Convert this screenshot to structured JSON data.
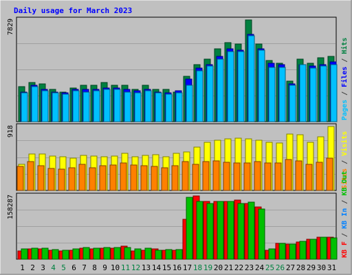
{
  "chart_data": {
    "type": "bar",
    "title": "Daily usage for March 2023",
    "categories": [
      "1",
      "2",
      "3",
      "4",
      "5",
      "6",
      "7",
      "8",
      "9",
      "10",
      "11",
      "12",
      "13",
      "14",
      "15",
      "16",
      "17",
      "18",
      "19",
      "20",
      "21",
      "22",
      "23",
      "24",
      "25",
      "26",
      "27",
      "28",
      "29",
      "30",
      "31"
    ],
    "weekend_days": [
      "4",
      "5",
      "11",
      "12",
      "18",
      "19",
      "25",
      "26"
    ],
    "panels": [
      {
        "name": "hits-files-pages",
        "max_label": "7829",
        "ylim": [
          0,
          7829
        ],
        "right_labels": [
          {
            "text": "Pages",
            "color": "#00C0FF"
          },
          {
            "text": " / ",
            "color": "#404040"
          },
          {
            "text": "Files",
            "color": "#0000FF"
          },
          {
            "text": " / ",
            "color": "#404040"
          },
          {
            "text": "Hits",
            "color": "#008040"
          }
        ],
        "series": [
          {
            "name": "Hits",
            "color": "#008040",
            "values": [
              2700,
              3000,
              2900,
              2500,
              2300,
              2600,
              2800,
              2800,
              3000,
              2800,
              2800,
              2500,
              2800,
              2500,
              2500,
              2300,
              3500,
              4400,
              4800,
              5600,
              6100,
              6000,
              7829,
              6000,
              4700,
              4500,
              3100,
              4800,
              4500,
              4900,
              5000
            ]
          },
          {
            "name": "Files",
            "color": "#0000FF",
            "values": [
              2300,
              2800,
              2500,
              2300,
              2200,
              2500,
              2500,
              2500,
              2600,
              2600,
              2500,
              2400,
              2500,
              2300,
              2200,
              2400,
              3300,
              4100,
              4400,
              5000,
              5600,
              5500,
              6700,
              5600,
              4500,
              4400,
              2900,
              4400,
              4300,
              4400,
              4600
            ]
          },
          {
            "name": "Pages",
            "color": "#00C0FF",
            "values": [
              2200,
              2700,
              2400,
              2200,
              2100,
              2400,
              2300,
              2400,
              2500,
              2500,
              2300,
              2200,
              2400,
              2200,
              2100,
              2200,
              2800,
              3900,
              4300,
              4800,
              5400,
              5400,
              6600,
              5500,
              4200,
              4200,
              2800,
              4400,
              4100,
              4300,
              4400
            ]
          }
        ]
      },
      {
        "name": "visits-sites",
        "max_label": "918",
        "ylim": [
          0,
          918
        ],
        "right_labels": [
          {
            "text": "Sites",
            "color": "#FF8000"
          },
          {
            "text": " / ",
            "color": "#404040"
          },
          {
            "text": "Visits",
            "color": "#FFFF00"
          }
        ],
        "series": [
          {
            "name": "Visits",
            "color": "#FFFF00",
            "values": [
              380,
              520,
              520,
              490,
              480,
              460,
              500,
              490,
              480,
              490,
              530,
              480,
              500,
              510,
              480,
              530,
              550,
              620,
              690,
              720,
              740,
              750,
              740,
              720,
              690,
              680,
              810,
              800,
              690,
              770,
              918
            ]
          },
          {
            "name": "Sites",
            "color": "#FF8000",
            "values": [
              350,
              410,
              360,
              320,
              310,
              330,
              380,
              330,
              360,
              370,
              390,
              370,
              360,
              350,
              330,
              360,
              410,
              380,
              410,
              420,
              400,
              390,
              390,
              410,
              390,
              390,
              440,
              420,
              380,
              400,
              460
            ]
          }
        ]
      },
      {
        "name": "kbytes",
        "max_label": "158287",
        "ylim": [
          0,
          158287
        ],
        "right_labels": [
          {
            "text": "KB F",
            "color": "#FF0000"
          },
          {
            "text": " / ",
            "color": "#404040"
          },
          {
            "text": "KB In",
            "color": "#0080FF"
          },
          {
            "text": " / ",
            "color": "#404040"
          },
          {
            "text": "KB Out",
            "color": "#00C000"
          }
        ],
        "series": [
          {
            "name": "KB F",
            "color": "#FF0000",
            "values": [
              21000,
              26000,
              25000,
              22000,
              21000,
              22000,
              27000,
              26000,
              27000,
              28000,
              32000,
              21000,
              22000,
              25000,
              22000,
              23000,
              100000,
              158287,
              145000,
              145000,
              145000,
              148000,
              140000,
              130000,
              23000,
              40000,
              38000,
              43000,
              50000,
              55000,
              55000
            ]
          },
          {
            "name": "KB Out",
            "color": "#00C000",
            "values": [
              25000,
              28000,
              28000,
              24000,
              23000,
              25000,
              29000,
              28000,
              30000,
              29000,
              30000,
              25000,
              28000,
              22000,
              24000,
              24000,
              155000,
              145000,
              140000,
              145000,
              145000,
              140000,
              142000,
              125000,
              25000,
              40000,
              37000,
              45000,
              50000,
              55000,
              53000
            ]
          }
        ]
      }
    ]
  }
}
